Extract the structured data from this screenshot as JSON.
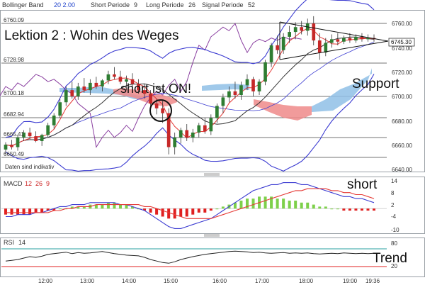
{
  "header": {
    "bollinger_label": "Bollinger Band",
    "bollinger_params": "20  2.00",
    "short_label": "Short Periode",
    "short_val": "9",
    "long_label": "Long Periode",
    "long_val": "26",
    "signal_label": "Signal Periode",
    "signal_val": "52"
  },
  "annotations": {
    "lesson_title": "Lektion 2 : Wohin des Weges",
    "short_on": "short ist ON!",
    "support": "Support",
    "short": "short",
    "trend": "Trend",
    "indicative": "Daten sind indikativ"
  },
  "colors": {
    "bollinger": "#3b3bd1",
    "tenkan": "#e53935",
    "kijun": "#333333",
    "chikou": "#8a3fa0",
    "cloud_bull": "#8fc0e6",
    "cloud_bear": "#ee8a8a",
    "candle_up": "#2e7d32",
    "candle_down": "#c62828",
    "macd_line": "#3b3bd1",
    "signal_line": "#e53935",
    "hist_pos": "#7dd04a",
    "hist_neg": "#e02020",
    "rsi_line": "#222222",
    "rsi_band_upper": "#2aa0a0",
    "rsi_band_lower": "#e02020"
  },
  "chart_data": [
    {
      "type": "candlestick",
      "panel": "price",
      "y_left_ticks": [
        "6760.09",
        "6728.98",
        "6700.18",
        "6682.94",
        "6665.41",
        "6650.49"
      ],
      "y_right_ticks": [
        "6760.00",
        "6740.00",
        "6720.00",
        "6700.00",
        "6680.00",
        "6660.00",
        "6640.00"
      ],
      "last_price": "6745.30",
      "ylim": [
        6637,
        6768
      ],
      "x_ticks": [
        "12:00",
        "13:00",
        "14:00",
        "15:00",
        "16:00",
        "17:00",
        "18:00",
        "19:00",
        "19:36"
      ],
      "candles": [
        [
          6654,
          6660,
          6650,
          6658
        ],
        [
          6658,
          6662,
          6654,
          6656
        ],
        [
          6656,
          6666,
          6653,
          6664
        ],
        [
          6664,
          6670,
          6661,
          6668
        ],
        [
          6668,
          6672,
          6663,
          6665
        ],
        [
          6665,
          6669,
          6660,
          6661
        ],
        [
          6661,
          6667,
          6657,
          6666
        ],
        [
          6666,
          6676,
          6664,
          6674
        ],
        [
          6674,
          6684,
          6671,
          6682
        ],
        [
          6682,
          6696,
          6680,
          6693
        ],
        [
          6693,
          6706,
          6690,
          6703
        ],
        [
          6703,
          6710,
          6696,
          6698
        ],
        [
          6698,
          6709,
          6695,
          6706
        ],
        [
          6706,
          6713,
          6701,
          6703
        ],
        [
          6703,
          6712,
          6699,
          6709
        ],
        [
          6709,
          6714,
          6704,
          6706
        ],
        [
          6706,
          6712,
          6702,
          6711
        ],
        [
          6711,
          6719,
          6708,
          6716
        ],
        [
          6716,
          6722,
          6712,
          6714
        ],
        [
          6714,
          6719,
          6708,
          6710
        ],
        [
          6710,
          6715,
          6703,
          6712
        ],
        [
          6712,
          6717,
          6706,
          6708
        ],
        [
          6708,
          6712,
          6700,
          6703
        ],
        [
          6703,
          6708,
          6696,
          6700
        ],
        [
          6700,
          6703,
          6688,
          6692
        ],
        [
          6692,
          6696,
          6683,
          6688
        ],
        [
          6688,
          6694,
          6676,
          6684
        ],
        [
          6684,
          6688,
          6650,
          6656
        ],
        [
          6656,
          6668,
          6650,
          6664
        ],
        [
          6664,
          6672,
          6659,
          6670
        ],
        [
          6670,
          6675,
          6661,
          6664
        ],
        [
          6664,
          6671,
          6660,
          6668
        ],
        [
          6668,
          6676,
          6664,
          6674
        ],
        [
          6674,
          6680,
          6667,
          6669
        ],
        [
          6669,
          6683,
          6666,
          6680
        ],
        [
          6680,
          6692,
          6676,
          6690
        ],
        [
          6690,
          6700,
          6684,
          6697
        ],
        [
          6697,
          6706,
          6693,
          6702
        ],
        [
          6702,
          6710,
          6696,
          6699
        ],
        [
          6699,
          6710,
          6695,
          6707
        ],
        [
          6707,
          6716,
          6703,
          6712
        ],
        [
          6712,
          6714,
          6698,
          6702
        ],
        [
          6702,
          6712,
          6699,
          6710
        ],
        [
          6710,
          6728,
          6707,
          6726
        ],
        [
          6726,
          6742,
          6722,
          6740
        ],
        [
          6740,
          6748,
          6733,
          6736
        ],
        [
          6736,
          6750,
          6733,
          6747
        ],
        [
          6747,
          6756,
          6742,
          6751
        ],
        [
          6751,
          6759,
          6745,
          6755
        ],
        [
          6755,
          6760,
          6749,
          6752
        ],
        [
          6752,
          6762,
          6748,
          6758
        ],
        [
          6758,
          6764,
          6740,
          6744
        ],
        [
          6744,
          6750,
          6728,
          6734
        ],
        [
          6734,
          6746,
          6731,
          6742
        ],
        [
          6742,
          6749,
          6738,
          6745
        ],
        [
          6745,
          6750,
          6740,
          6743
        ],
        [
          6743,
          6748,
          6741,
          6746
        ],
        [
          6746,
          6750,
          6742,
          6744
        ],
        [
          6744,
          6749,
          6742,
          6747
        ],
        [
          6747,
          6750,
          6743,
          6745
        ],
        [
          6745,
          6749,
          6743,
          6746
        ],
        [
          6746,
          6749,
          6743,
          6745
        ]
      ]
    },
    {
      "type": "bar+line",
      "panel": "macd",
      "title": "MACD",
      "params": [
        "12",
        "26",
        "9"
      ],
      "y_ticks": [
        "14",
        "8",
        "2",
        "-4",
        "-10"
      ],
      "ylim": [
        -12,
        15
      ],
      "histogram": [
        -3,
        -3,
        -3,
        -3,
        -3,
        -2,
        -2,
        -1,
        -1,
        0,
        0,
        1,
        1,
        1,
        2,
        2,
        2,
        3,
        3,
        2,
        2,
        1,
        0,
        -1,
        -2,
        -3,
        -4,
        -5,
        -5,
        -4,
        -4,
        -3,
        -2,
        -2,
        -1,
        0,
        1,
        2,
        3,
        4,
        5,
        5,
        6,
        6,
        6,
        5,
        5,
        4,
        4,
        3,
        3,
        2,
        1,
        1,
        0,
        0,
        -1,
        -1,
        -1,
        -1,
        -1,
        -1
      ],
      "macd": [
        -4,
        -4,
        -3,
        -3,
        -3,
        -2,
        -2,
        -1,
        0,
        1,
        1,
        2,
        2,
        2,
        3,
        3,
        3,
        3,
        3,
        2,
        2,
        1,
        0,
        -1,
        -3,
        -5,
        -7,
        -9,
        -10,
        -10,
        -9,
        -8,
        -7,
        -6,
        -5,
        -3,
        -1,
        1,
        3,
        5,
        7,
        9,
        10,
        11,
        12,
        12,
        13,
        13,
        13,
        12,
        12,
        11,
        10,
        9,
        8,
        7,
        6,
        6,
        5,
        5,
        4,
        3
      ],
      "signal": [
        -2,
        -2,
        -2,
        -2,
        -2,
        -2,
        -2,
        -2,
        -1,
        -1,
        0,
        0,
        1,
        1,
        1,
        2,
        2,
        2,
        2,
        2,
        2,
        2,
        2,
        1,
        1,
        0,
        -1,
        -2,
        -3,
        -4,
        -5,
        -5,
        -5,
        -5,
        -5,
        -4,
        -3,
        -2,
        -1,
        0,
        1,
        2,
        3,
        4,
        5,
        6,
        7,
        8,
        9,
        9,
        10,
        10,
        10,
        10,
        9,
        9,
        8,
        8,
        7,
        7,
        6,
        5
      ]
    },
    {
      "type": "line",
      "panel": "rsi",
      "title": "RSI",
      "params": [
        "14"
      ],
      "y_ticks": [
        "80",
        "20"
      ],
      "ylim": [
        0,
        100
      ],
      "values": [
        40,
        42,
        44,
        48,
        52,
        50,
        53,
        58,
        60,
        62,
        64,
        60,
        63,
        61,
        62,
        64,
        66,
        63,
        60,
        58,
        56,
        55,
        54,
        50,
        44,
        40,
        36,
        34,
        38,
        44,
        48,
        52,
        55,
        58,
        60,
        62,
        64,
        66,
        67,
        66,
        65,
        63,
        64,
        62,
        61,
        62,
        63,
        61,
        62,
        61,
        62,
        60,
        59,
        60,
        61,
        60,
        62,
        61,
        60,
        61,
        60,
        61
      ]
    }
  ]
}
